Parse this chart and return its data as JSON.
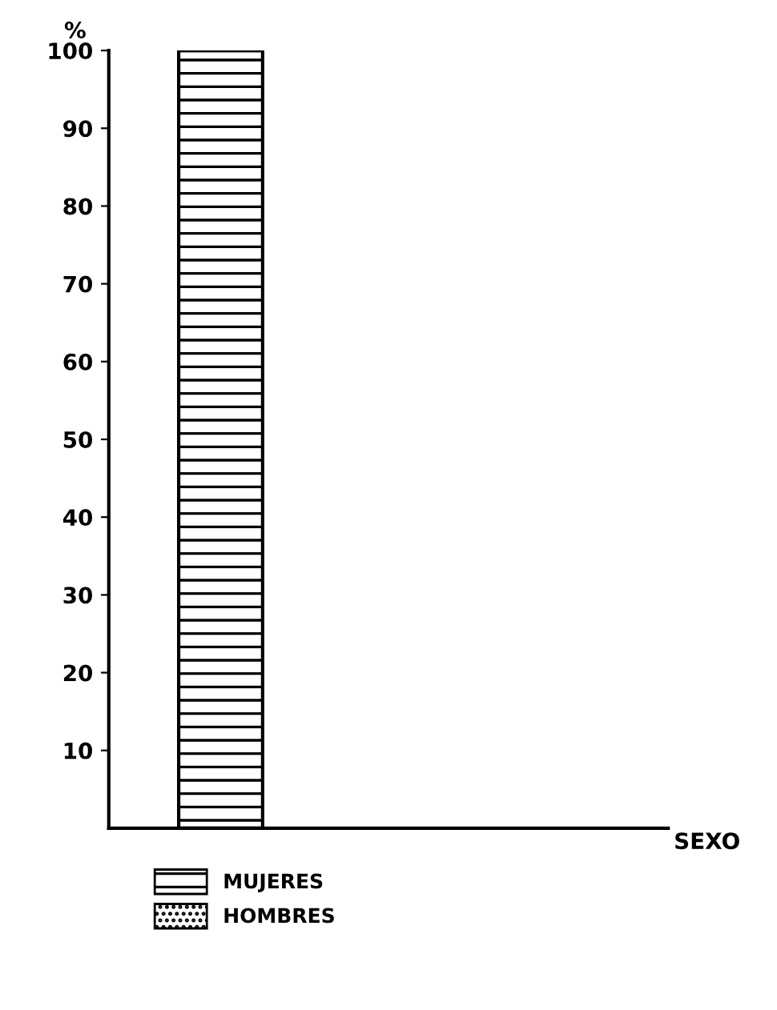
{
  "chart_data": {
    "type": "bar",
    "stacked": true,
    "xlabel": "SEXO",
    "ylabel": "%",
    "categories": [
      null
    ],
    "series": [
      {
        "name": "MUJERES",
        "color": "#000000",
        "values": [
          100
        ]
      },
      {
        "name": "HOMBRES",
        "color": "#000000",
        "values": [
          0
        ]
      }
    ],
    "ylim": [
      0,
      100
    ],
    "yticks": [
      10,
      20,
      30,
      40,
      50,
      60,
      70,
      80,
      90,
      100
    ],
    "grid": false,
    "legend": "bottom left"
  }
}
